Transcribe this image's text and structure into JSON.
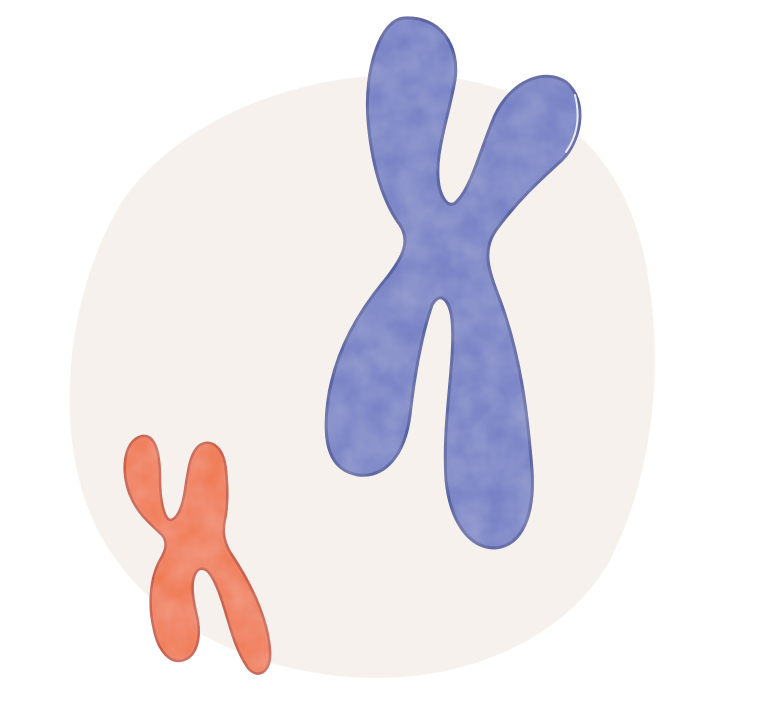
{
  "scene": {
    "description_free": true,
    "colors": {
      "background": "#ffffff",
      "blob": "#f7f1ed",
      "large_chromosome_fill": "#6f7bc4",
      "large_chromosome_outline": "#44539c",
      "small_chromosome_fill": "#f07547",
      "small_chromosome_outline": "#c44b2a"
    },
    "objects": [
      {
        "name": "large-chromosome",
        "shape": "X"
      },
      {
        "name": "small-chromosome",
        "shape": "X"
      }
    ]
  }
}
